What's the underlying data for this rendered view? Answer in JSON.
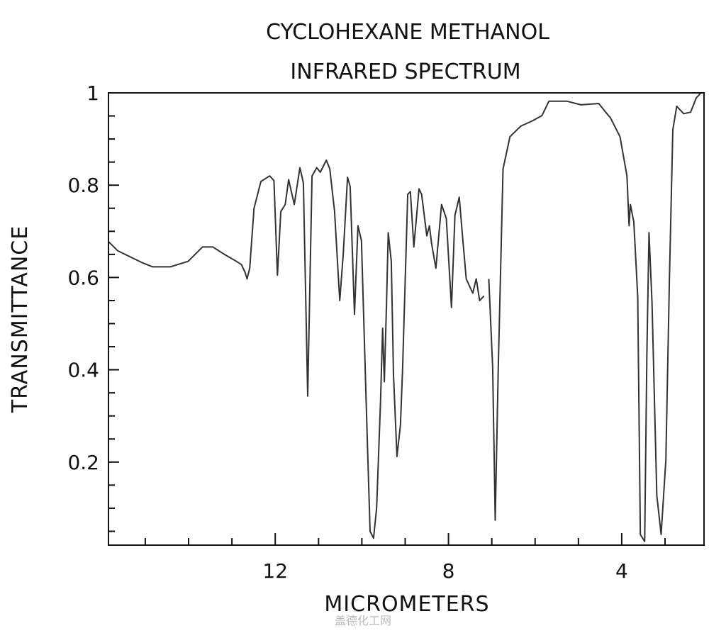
{
  "chart_data": {
    "type": "line",
    "title": [
      "CYCLOHEXANE METHANOL",
      "INFRARED SPECTRUM"
    ],
    "xlabel": "MICROMETERS",
    "ylabel": "TRANSMITTANCE",
    "xlim": [
      15.85,
      2.1
    ],
    "x_reversed": true,
    "ylim": [
      0.02,
      1.0
    ],
    "x_ticks_major": [
      12,
      8,
      4
    ],
    "x_ticks_minor": [
      15,
      14,
      13,
      11,
      10,
      9,
      7,
      6,
      5,
      3
    ],
    "y_ticks_major": [
      0.2,
      0.4,
      0.6,
      0.8,
      1
    ],
    "y_tick_labels": [
      "0.2",
      "0.4",
      "0.6",
      "0.8",
      "1"
    ],
    "x_tick_labels": [
      "12",
      "8",
      "4"
    ],
    "grid": false,
    "line_color": "#333333",
    "series": [
      {
        "name": "transmittance",
        "points": [
          [
            15.84,
            0.677
          ],
          [
            15.64,
            0.658
          ],
          [
            15.07,
            0.632
          ],
          [
            14.83,
            0.623
          ],
          [
            14.42,
            0.623
          ],
          [
            14.01,
            0.635
          ],
          [
            13.68,
            0.666
          ],
          [
            13.44,
            0.666
          ],
          [
            13.19,
            0.651
          ],
          [
            12.95,
            0.638
          ],
          [
            12.78,
            0.628
          ],
          [
            12.7,
            0.612
          ],
          [
            12.65,
            0.597
          ],
          [
            12.59,
            0.62
          ],
          [
            12.49,
            0.75
          ],
          [
            12.33,
            0.808
          ],
          [
            12.13,
            0.82
          ],
          [
            12.03,
            0.81
          ],
          [
            11.95,
            0.605
          ],
          [
            11.87,
            0.743
          ],
          [
            11.77,
            0.758
          ],
          [
            11.69,
            0.812
          ],
          [
            11.56,
            0.758
          ],
          [
            11.43,
            0.838
          ],
          [
            11.35,
            0.805
          ],
          [
            11.25,
            0.343
          ],
          [
            11.15,
            0.82
          ],
          [
            11.04,
            0.838
          ],
          [
            10.96,
            0.828
          ],
          [
            10.82,
            0.854
          ],
          [
            10.74,
            0.835
          ],
          [
            10.63,
            0.743
          ],
          [
            10.51,
            0.55
          ],
          [
            10.43,
            0.65
          ],
          [
            10.33,
            0.817
          ],
          [
            10.27,
            0.797
          ],
          [
            10.17,
            0.52
          ],
          [
            10.09,
            0.712
          ],
          [
            10.01,
            0.68
          ],
          [
            9.88,
            0.266
          ],
          [
            9.81,
            0.05
          ],
          [
            9.73,
            0.035
          ],
          [
            9.66,
            0.1
          ],
          [
            9.57,
            0.33
          ],
          [
            9.52,
            0.49
          ],
          [
            9.48,
            0.374
          ],
          [
            9.43,
            0.545
          ],
          [
            9.39,
            0.697
          ],
          [
            9.32,
            0.635
          ],
          [
            9.27,
            0.39
          ],
          [
            9.19,
            0.212
          ],
          [
            9.11,
            0.28
          ],
          [
            9.06,
            0.4
          ],
          [
            8.94,
            0.78
          ],
          [
            8.88,
            0.786
          ],
          [
            8.8,
            0.666
          ],
          [
            8.68,
            0.792
          ],
          [
            8.62,
            0.78
          ],
          [
            8.5,
            0.69
          ],
          [
            8.44,
            0.712
          ],
          [
            8.39,
            0.674
          ],
          [
            8.29,
            0.62
          ],
          [
            8.16,
            0.758
          ],
          [
            8.05,
            0.728
          ],
          [
            7.93,
            0.535
          ],
          [
            7.85,
            0.735
          ],
          [
            7.75,
            0.774
          ],
          [
            7.69,
            0.705
          ],
          [
            7.59,
            0.597
          ],
          [
            7.44,
            0.566
          ],
          [
            7.36,
            0.597
          ],
          [
            7.28,
            0.55
          ],
          [
            7.18,
            0.56
          ],
          null,
          [
            7.07,
            0.597
          ],
          [
            6.98,
            0.405
          ],
          [
            6.92,
            0.074
          ],
          [
            6.85,
            0.405
          ],
          [
            6.74,
            0.835
          ],
          [
            6.58,
            0.905
          ],
          [
            6.33,
            0.928
          ],
          [
            6.05,
            0.94
          ],
          [
            5.84,
            0.951
          ],
          [
            5.68,
            0.982
          ],
          [
            5.27,
            0.982
          ],
          [
            4.94,
            0.974
          ],
          [
            4.53,
            0.977
          ],
          [
            4.37,
            0.958
          ],
          [
            4.26,
            0.946
          ],
          [
            4.04,
            0.905
          ],
          [
            3.88,
            0.82
          ],
          [
            3.83,
            0.712
          ],
          [
            3.8,
            0.758
          ],
          [
            3.72,
            0.72
          ],
          [
            3.63,
            0.558
          ],
          [
            3.57,
            0.043
          ],
          [
            3.47,
            0.028
          ],
          [
            3.42,
            0.435
          ],
          [
            3.37,
            0.697
          ],
          [
            3.3,
            0.543
          ],
          [
            3.19,
            0.128
          ],
          [
            3.09,
            0.043
          ],
          [
            2.98,
            0.205
          ],
          [
            2.9,
            0.59
          ],
          [
            2.82,
            0.92
          ],
          [
            2.73,
            0.971
          ],
          [
            2.57,
            0.955
          ],
          [
            2.41,
            0.958
          ],
          [
            2.28,
            0.989
          ],
          [
            2.17,
            1.0
          ]
        ]
      }
    ]
  },
  "watermark": "盖德化工网"
}
